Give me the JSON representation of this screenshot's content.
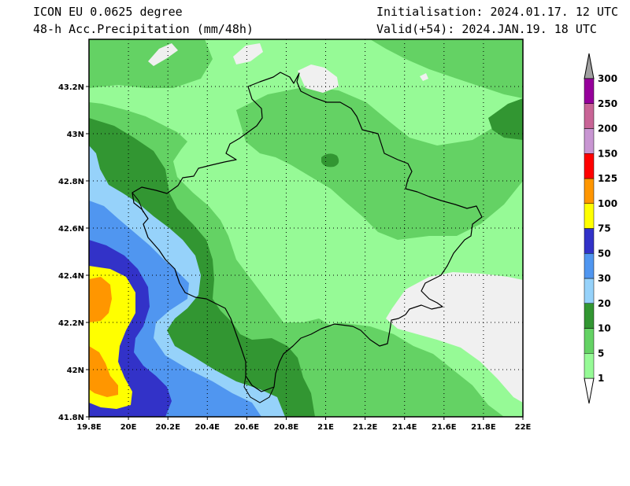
{
  "header": {
    "model": "ICON EU 0.0625 degree",
    "field": "48-h Acc.Precipitation (mm/48h)",
    "init": "Initialisation: 2024.01.17. 12 UTC",
    "valid": "Valid(+54): 2024.JAN.19. 18 UTC"
  },
  "map": {
    "lon_range": [
      19.8,
      22.0
    ],
    "lat_range": [
      41.8,
      43.4
    ],
    "grid": "dotted",
    "lon_ticks": [
      "19.8E",
      "20E",
      "20.2E",
      "20.4E",
      "20.6E",
      "20.8E",
      "21E",
      "21.2E",
      "21.4E",
      "21.6E",
      "21.8E",
      "22E"
    ],
    "lat_ticks": [
      "41.8N",
      "42N",
      "42.2N",
      "42.4N",
      "42.6N",
      "42.8N",
      "43N",
      "43.2N"
    ]
  },
  "legend": {
    "placement": "right",
    "levels": [
      {
        "label": "1",
        "color": "#96fa96"
      },
      {
        "label": "5",
        "color": "#64d264"
      },
      {
        "label": "10",
        "color": "#329632"
      },
      {
        "label": "20",
        "color": "#96d2fa"
      },
      {
        "label": "30",
        "color": "#5096f0"
      },
      {
        "label": "50",
        "color": "#3232c8"
      },
      {
        "label": "75",
        "color": "#ffff00"
      },
      {
        "label": "100",
        "color": "#ff9600"
      },
      {
        "label": "125",
        "color": "#ff0000"
      },
      {
        "label": "150",
        "color": "#c896d2"
      },
      {
        "label": "200",
        "color": "#c86496"
      },
      {
        "label": "250",
        "color": "#96009b"
      },
      {
        "label": "300",
        "color": ""
      }
    ],
    "below_color": "#ffffff",
    "above_color": "#a0a0a0"
  },
  "colors": {
    "no_rain": "#f0f0f0",
    "border": "#000000"
  }
}
